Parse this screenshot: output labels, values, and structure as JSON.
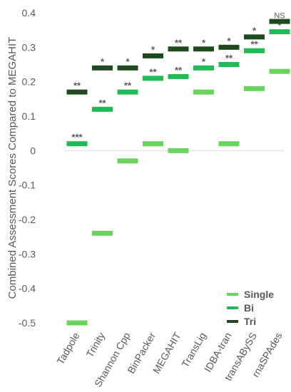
{
  "chart_data": {
    "type": "scatter",
    "title": "",
    "xlabel": "",
    "ylabel": "Combined Assessment Scores Compared to MEGAHIT",
    "ylim": [
      -0.5,
      0.4
    ],
    "yticks": [
      0.4,
      0.3,
      0.2,
      0.1,
      0,
      -0.1,
      -0.2,
      -0.3,
      -0.4,
      -0.5
    ],
    "ytick_labels": [
      "0.4",
      "0.3",
      "0.2",
      "0.1",
      "0",
      "-0.1",
      "-0.2",
      "-0.3",
      "-0.4",
      "-0.5"
    ],
    "categories": [
      "Tadpole",
      "Trinity",
      "Shannon Cpp",
      "BinPacker",
      "MEGAHIT",
      "TransLig",
      "IDBA-tran",
      "transABySS",
      "rnaSPAdes"
    ],
    "series": [
      {
        "name": "Single",
        "color": "#6ad35e",
        "values": [
          -0.5,
          -0.24,
          -0.03,
          0.02,
          0.0,
          0.17,
          0.02,
          0.18,
          0.23
        ],
        "labels": [
          "",
          "",
          "",
          "",
          "",
          "",
          "",
          "",
          ""
        ]
      },
      {
        "name": "Bi",
        "color": "#1fbb55",
        "values": [
          0.02,
          0.12,
          0.17,
          0.21,
          0.215,
          0.24,
          0.25,
          0.29,
          0.345
        ],
        "labels": [
          "***",
          "**",
          "**",
          "**",
          "**",
          "*",
          "**",
          "**",
          "*"
        ]
      },
      {
        "name": "Tri",
        "color": "#1e4a1e",
        "values": [
          0.17,
          0.24,
          0.24,
          0.275,
          0.295,
          0.295,
          0.3,
          0.33,
          0.375
        ],
        "labels": [
          "**",
          "*",
          "*",
          "*",
          "**",
          "*",
          "*",
          "*",
          "NS"
        ]
      }
    ],
    "legend": {
      "position": "bottom-right",
      "entries": [
        "Single",
        "Bi",
        "Tri"
      ]
    },
    "grid": false
  }
}
